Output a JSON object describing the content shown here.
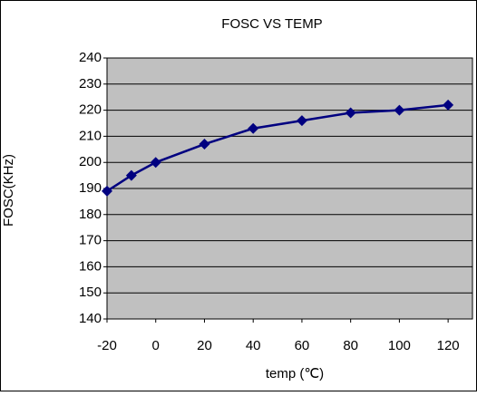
{
  "chart_data": {
    "type": "line",
    "title": "FOSC VS TEMP",
    "x_label": "temp (℃)",
    "y_label": "FOSC(KHz)",
    "x": [
      -20,
      -10,
      0,
      20,
      40,
      60,
      80,
      100,
      120
    ],
    "series": [
      {
        "name": "FOSC",
        "color": "#000080",
        "values": [
          189,
          195,
          200,
          207,
          213,
          216,
          219,
          220,
          222
        ]
      }
    ],
    "xlim": [
      -20,
      130
    ],
    "xticks": [
      -20,
      0,
      20,
      40,
      60,
      80,
      100,
      120
    ],
    "ylim": [
      140,
      240
    ],
    "yticks": [
      140,
      150,
      160,
      170,
      180,
      190,
      200,
      210,
      220,
      230,
      240
    ],
    "grid": true,
    "plot_background": "#c0c0c0"
  }
}
